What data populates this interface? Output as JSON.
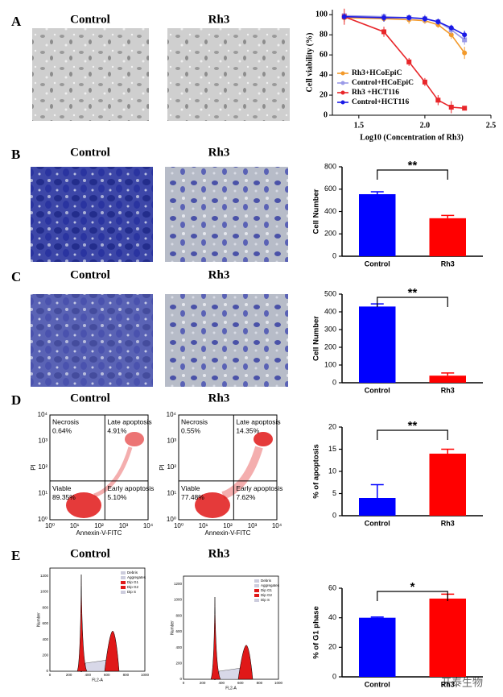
{
  "panels": [
    {
      "letter": "A",
      "image_labels": [
        "Control",
        "Rh3"
      ]
    },
    {
      "letter": "B",
      "image_labels": [
        "Control",
        "Rh3"
      ]
    },
    {
      "letter": "C",
      "image_labels": [
        "Control",
        "Rh3"
      ]
    },
    {
      "letter": "D",
      "image_labels": [
        "Control",
        "Rh3"
      ]
    },
    {
      "letter": "E",
      "image_labels": [
        "Control",
        "Rh3"
      ]
    }
  ],
  "flow_plots": [
    {
      "labels": [
        "Necrosis",
        "0.64%",
        "Late apoptosis",
        "4.91%",
        "Viable",
        "89.35%",
        "Early apoptosis",
        "5.10%"
      ]
    },
    {
      "labels": [
        "Necrosis",
        "0.55%",
        "Late apoptosis",
        "14.35%",
        "Viable",
        "77.48%",
        "Early apoptosis",
        "7.62%"
      ]
    }
  ],
  "flow_axes": {
    "x_label": "Annexin-V-FITC",
    "y_label": "PI",
    "ticks": [
      "10⁰",
      "10¹",
      "10²",
      "10³",
      "10⁴"
    ]
  },
  "histograms": {
    "legend": [
      "Debris",
      "Aggregates",
      "Dip G1",
      "Dip G2",
      "Dip S"
    ],
    "x_label": "FL2-A",
    "y_label": "Number",
    "x_ticks": [
      "0",
      "200",
      "400",
      "600",
      "800",
      "1000"
    ],
    "y_ticks": [
      "0",
      "200",
      "400",
      "600",
      "800",
      "1000",
      "1200"
    ]
  },
  "watermark": "开泰生物",
  "chart_data": [
    {
      "type": "line",
      "xlabel": "Log10 (Concentration of Rh3)",
      "ylabel": "Cell viability (%)",
      "x": [
        1.39,
        1.69,
        1.88,
        2.0,
        2.1,
        2.2,
        2.3
      ],
      "xlim": [
        1.3,
        2.5
      ],
      "xticks": [
        1.5,
        {
          "value": 2,
          "label": "2.0"
        },
        2.5
      ],
      "ylim": [
        0,
        105
      ],
      "yticks": [
        0,
        20,
        40,
        60,
        80,
        100
      ],
      "legend": "lower left",
      "series": [
        {
          "name": "Rh3+HCoEpiC",
          "color": "#f39a2b",
          "marker": "circle",
          "values": [
            97,
            96,
            95,
            94,
            90,
            80,
            62
          ],
          "errors": [
            4,
            3,
            4,
            3,
            3,
            4,
            6
          ]
        },
        {
          "name": "Control+HCoEpiC",
          "color": "#9a9ae8",
          "marker": "square",
          "values": [
            99,
            98,
            97,
            96,
            93,
            85,
            75
          ],
          "errors": [
            3,
            3,
            3,
            4,
            3,
            4,
            5
          ]
        },
        {
          "name": "Rh3 +HCT116",
          "color": "#e8262a",
          "marker": "square",
          "values": [
            98,
            83,
            53,
            33,
            15,
            8,
            7
          ],
          "errors": [
            8,
            5,
            4,
            4,
            5,
            6,
            2
          ]
        },
        {
          "name": "Control+HCT116",
          "color": "#1a1ae6",
          "marker": "circle",
          "values": [
            98,
            97,
            97,
            96,
            93,
            87,
            80
          ],
          "errors": [
            3,
            4,
            3,
            3,
            3,
            3,
            4
          ]
        }
      ]
    },
    {
      "type": "bar",
      "ylabel": "Cell Number",
      "categories": [
        "Control",
        "Rh3"
      ],
      "values": [
        555,
        340
      ],
      "errors": [
        22,
        25
      ],
      "colors": [
        "#0000ff",
        "#ff0000"
      ],
      "ylim": [
        0,
        800
      ],
      "yticks": [
        0,
        200,
        400,
        600,
        800
      ],
      "annotation": "**"
    },
    {
      "type": "bar",
      "ylabel": "Cell Number",
      "categories": [
        "Control",
        "Rh3"
      ],
      "values": [
        430,
        40
      ],
      "errors": [
        15,
        15
      ],
      "colors": [
        "#0000ff",
        "#ff0000"
      ],
      "ylim": [
        0,
        500
      ],
      "yticks": [
        0,
        100,
        200,
        300,
        400,
        500
      ],
      "annotation": "**"
    },
    {
      "type": "bar",
      "ylabel": "% of apoptosis",
      "categories": [
        "Control",
        "Rh3"
      ],
      "values": [
        4,
        14
      ],
      "errors": [
        3,
        1
      ],
      "colors": [
        "#0000ff",
        "#ff0000"
      ],
      "ylim": [
        0,
        20
      ],
      "yticks": [
        0,
        5,
        10,
        15,
        20
      ],
      "annotation": "**"
    },
    {
      "type": "bar",
      "ylabel": "% of G1 phase",
      "categories": [
        "Control",
        "Rh3"
      ],
      "values": [
        40,
        53
      ],
      "errors": [
        0.5,
        3
      ],
      "colors": [
        "#0000ff",
        "#ff0000"
      ],
      "ylim": [
        0,
        60
      ],
      "yticks": [
        0,
        20,
        40,
        60
      ],
      "annotation": "*"
    }
  ]
}
